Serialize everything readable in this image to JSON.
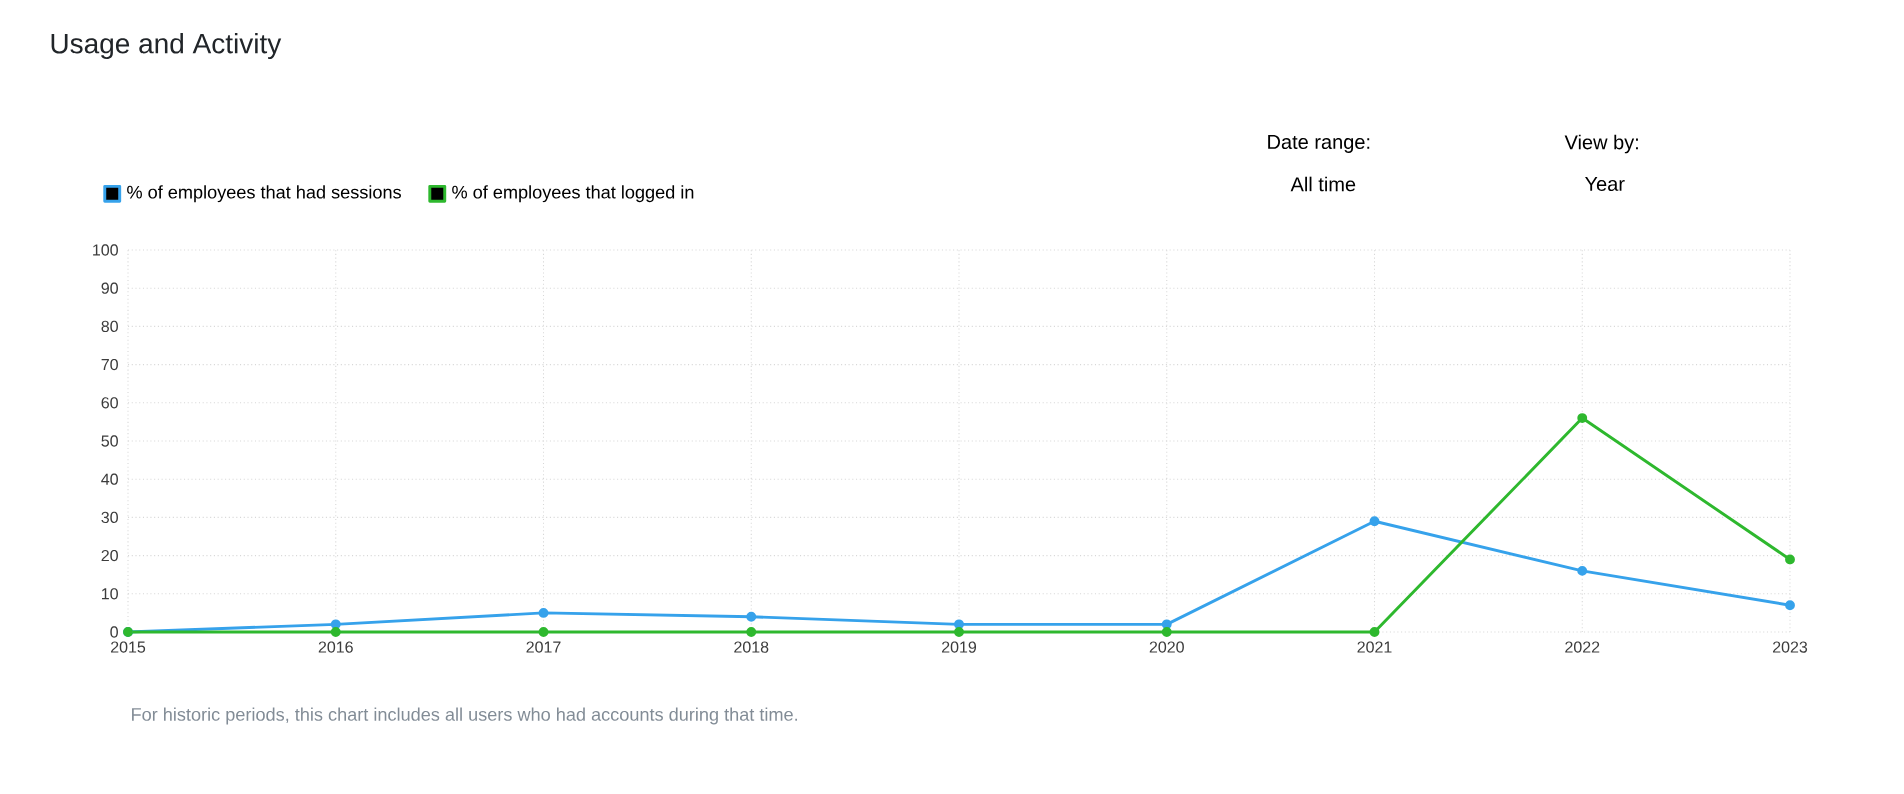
{
  "chart_data": {
    "type": "line",
    "title": "Usage and Activity",
    "categories": [
      "2015",
      "2016",
      "2017",
      "2018",
      "2019",
      "2020",
      "2021",
      "2022",
      "2023"
    ],
    "series": [
      {
        "name": "% of employees that had sessions",
        "color": "#36a2eb",
        "values": [
          0,
          2,
          5,
          4,
          2,
          2,
          29,
          16,
          7
        ]
      },
      {
        "name": "% of employees that logged in",
        "color": "#2eb82e",
        "values": [
          0,
          0,
          0,
          0,
          0,
          0,
          0,
          56,
          19
        ]
      }
    ],
    "ylim": [
      0,
      100
    ],
    "yticks": [
      0,
      10,
      20,
      30,
      40,
      50,
      60,
      70,
      80,
      90,
      100
    ],
    "grid": true,
    "legend": "top left",
    "marker": "circle",
    "line_style": "solid",
    "annotations": [
      "For historic periods, this chart includes all users who had accounts during that time.",
      "Date range:",
      "All time",
      "View by:",
      "Year"
    ]
  }
}
